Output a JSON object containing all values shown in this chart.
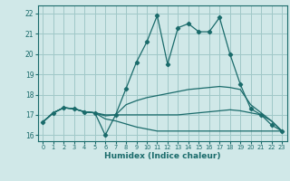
{
  "xlabel": "Humidex (Indice chaleur)",
  "xlim": [
    -0.5,
    23.5
  ],
  "ylim": [
    15.7,
    22.4
  ],
  "yticks": [
    16,
    17,
    18,
    19,
    20,
    21,
    22
  ],
  "xticks": [
    0,
    1,
    2,
    3,
    4,
    5,
    6,
    7,
    8,
    9,
    10,
    11,
    12,
    13,
    14,
    15,
    16,
    17,
    18,
    19,
    20,
    21,
    22,
    23
  ],
  "bg_color": "#d0e8e8",
  "grid_color": "#a0c8c8",
  "line_color": "#1a6b6b",
  "series": [
    [
      16.65,
      17.1,
      17.35,
      17.3,
      17.15,
      17.1,
      16.0,
      17.0,
      18.3,
      19.6,
      20.6,
      21.9,
      19.5,
      21.3,
      21.5,
      21.1,
      21.1,
      21.8,
      20.0,
      18.5,
      17.3,
      17.0,
      16.5,
      16.2
    ],
    [
      16.65,
      17.1,
      17.35,
      17.3,
      17.15,
      17.1,
      17.0,
      17.0,
      17.5,
      17.7,
      17.85,
      17.95,
      18.05,
      18.15,
      18.25,
      18.3,
      18.35,
      18.4,
      18.35,
      18.25,
      17.5,
      17.1,
      16.7,
      16.2
    ],
    [
      16.65,
      17.1,
      17.35,
      17.3,
      17.15,
      17.1,
      16.95,
      17.0,
      17.0,
      17.0,
      17.0,
      17.0,
      17.0,
      17.0,
      17.05,
      17.1,
      17.15,
      17.2,
      17.25,
      17.2,
      17.1,
      17.0,
      16.7,
      16.2
    ],
    [
      16.65,
      17.1,
      17.35,
      17.3,
      17.15,
      17.1,
      16.8,
      16.7,
      16.55,
      16.4,
      16.3,
      16.2,
      16.2,
      16.2,
      16.2,
      16.2,
      16.2,
      16.2,
      16.2,
      16.2,
      16.2,
      16.2,
      16.2,
      16.2
    ]
  ],
  "marker_series": [
    16.65,
    17.1,
    17.35,
    17.3,
    17.15,
    17.1,
    16.0,
    17.0,
    18.3,
    19.6,
    20.6,
    21.9,
    19.5,
    21.3,
    21.5,
    21.1,
    21.1,
    21.8,
    20.0,
    18.5,
    17.3,
    17.0,
    16.5,
    16.2
  ]
}
